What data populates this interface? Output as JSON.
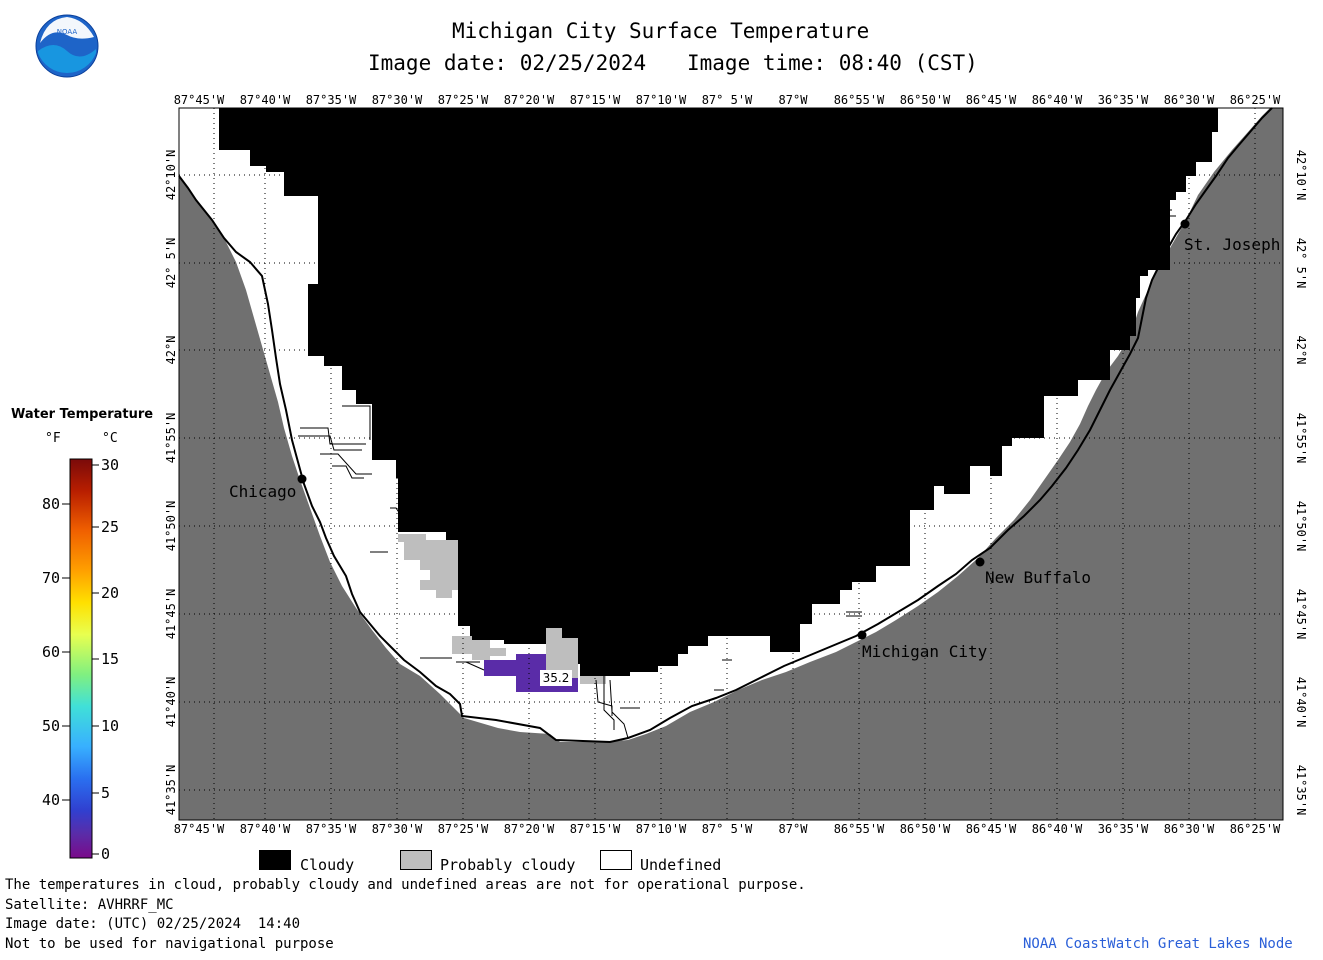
{
  "header": {
    "title": "Michigan City Surface Temperature",
    "image_date": "Image date: 02/25/2024",
    "image_time": "Image time: 08:40 (CST)"
  },
  "logo": {
    "text": "NOAA"
  },
  "colors": {
    "land": "#707070",
    "cloudy": "#000000",
    "probably_cloudy": "#bebebe",
    "undefined": "#ffffff",
    "water_35_2": "#5a2ca8",
    "attribution": "#2a5fd8"
  },
  "axes": {
    "longitude_labels": [
      "87°45'W",
      "87°40'W",
      "87°35'W",
      "87°30'W",
      "87°25'W",
      "87°20'W",
      "87°15'W",
      "87°10'W",
      "87° 5'W",
      "87°W",
      "86°55'W",
      "86°50'W",
      "86°45'W",
      "86°40'W",
      "36°35'W",
      "86°30'W",
      "86°25'W"
    ],
    "latitude_labels": [
      "42°10'N",
      "42° 5'N",
      "42°N",
      "41°55'N",
      "41°50'N",
      "41°45'N",
      "41°40'N",
      "41°35'N"
    ]
  },
  "legend": {
    "title": "Water Temperature",
    "unit_f": "°F",
    "unit_c": "°C",
    "fahrenheit_ticks": [
      "80",
      "70",
      "60",
      "50",
      "40"
    ],
    "celsius_ticks": [
      "30",
      "25",
      "20",
      "15",
      "10",
      "5",
      "0"
    ],
    "gradient_colors": [
      "#7a0a0a",
      "#c93000",
      "#ff7a00",
      "#ffcc00",
      "#f2ff40",
      "#7dff7d",
      "#30e8e8",
      "#2a9bff",
      "#2440e0",
      "#5a2ca8",
      "#7a0a8a"
    ]
  },
  "cities": [
    {
      "name": "Chicago"
    },
    {
      "name": "St. Joseph"
    },
    {
      "name": "New Buffalo"
    },
    {
      "name": "Michigan City"
    }
  ],
  "temperature_label": "35.2",
  "categories": {
    "cloudy": "Cloudy",
    "probably_cloudy": "Probably cloudy",
    "undefined": "Undefined"
  },
  "footer": {
    "line1": "The temperatures in cloud, probably cloudy and undefined areas are not for operational purpose.",
    "satellite": "Satellite: AVHRRF_MC",
    "utc_date": "Image date: (UTC) 02/25/2024  14:40",
    "nav_warning": "Not to be used for navigational purpose",
    "attribution": "NOAA CoastWatch Great Lakes Node"
  }
}
